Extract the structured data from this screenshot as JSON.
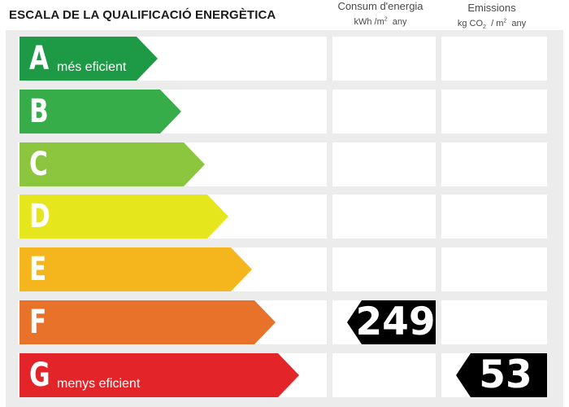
{
  "title": "ESCALA DE LA QUALIFICACIÓ ENERGÈTICA",
  "columns": {
    "consumption": {
      "label": "Consum d'energia",
      "unit_main": "kWh /m",
      "unit_exp": "2",
      "unit_tail": "any"
    },
    "emissions": {
      "label": "Emissions",
      "unit_main": "kg CO",
      "unit_sub": "2",
      "unit_mid": "/ m",
      "unit_exp": "2",
      "unit_tail": "any"
    }
  },
  "classes": [
    {
      "letter": "A",
      "caption": "més eficient",
      "color": "#1e9a47"
    },
    {
      "letter": "B",
      "caption": "",
      "color": "#36ad49"
    },
    {
      "letter": "C",
      "caption": "",
      "color": "#8cc63e"
    },
    {
      "letter": "D",
      "caption": "",
      "color": "#e6e61c"
    },
    {
      "letter": "E",
      "caption": "",
      "color": "#f5b51c"
    },
    {
      "letter": "F",
      "caption": "",
      "color": "#e8722a"
    },
    {
      "letter": "G",
      "caption": "menys eficient",
      "color": "#e3252a"
    }
  ],
  "rating": {
    "consumption": {
      "class": "F",
      "value": "249"
    },
    "emissions": {
      "class": "G",
      "value": "53"
    }
  }
}
